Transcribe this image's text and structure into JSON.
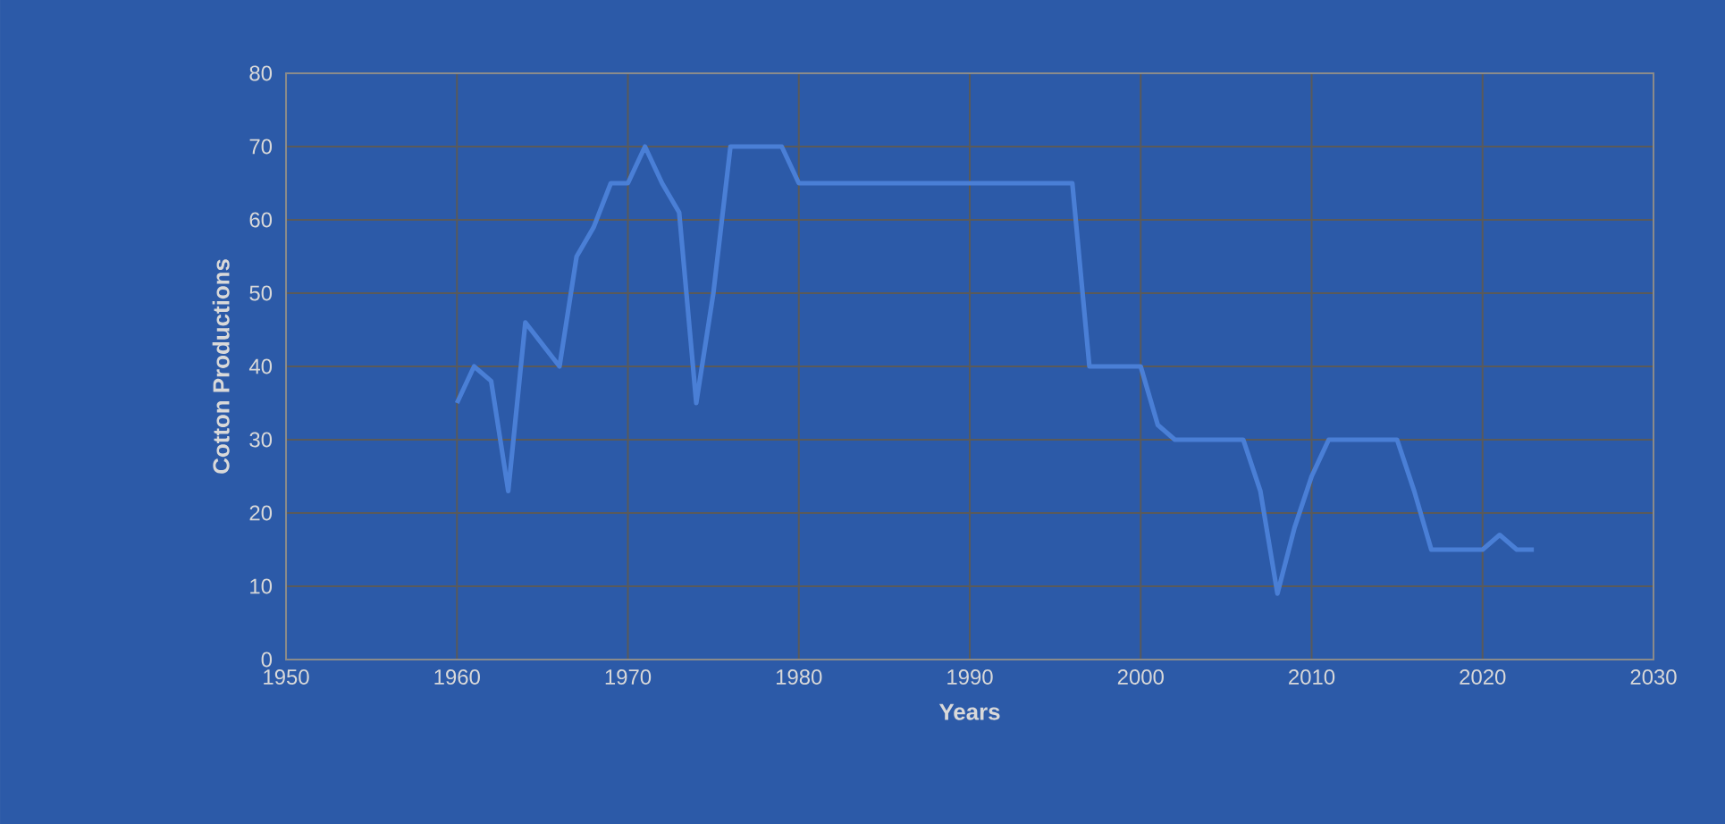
{
  "chart_data": {
    "type": "line",
    "xlabel": "Years",
    "ylabel": "Cotton Productions",
    "x": [
      1960,
      1961,
      1962,
      1963,
      1964,
      1965,
      1966,
      1967,
      1968,
      1969,
      1970,
      1971,
      1972,
      1973,
      1974,
      1975,
      1976,
      1977,
      1978,
      1979,
      1980,
      1981,
      1985,
      1990,
      1995,
      1996,
      1997,
      1998,
      1999,
      2000,
      2001,
      2002,
      2003,
      2004,
      2005,
      2006,
      2007,
      2008,
      2009,
      2010,
      2011,
      2012,
      2013,
      2014,
      2015,
      2016,
      2017,
      2018,
      2019,
      2020,
      2021,
      2022,
      2023
    ],
    "series": [
      {
        "color": "#4a7fd6",
        "values": [
          35,
          40,
          38,
          23,
          46,
          43,
          40,
          55,
          59,
          65,
          65,
          70,
          65,
          61,
          35,
          50,
          70,
          70,
          70,
          70,
          65,
          65,
          65,
          65,
          65,
          65,
          40,
          40,
          40,
          40,
          32,
          30,
          30,
          30,
          30,
          30,
          23,
          9,
          18,
          25,
          30,
          30,
          30,
          30,
          30,
          23,
          15,
          15,
          15,
          15,
          17,
          15,
          15
        ]
      }
    ],
    "xlim": [
      1950,
      2030
    ],
    "xticks": [
      1950,
      1960,
      1970,
      1980,
      1990,
      2000,
      2010,
      2020,
      2030
    ],
    "ylim": [
      0,
      80
    ],
    "yticks": [
      0,
      10,
      20,
      30,
      40,
      50,
      60,
      70,
      80
    ],
    "grid": true,
    "marker": "none",
    "line_style": "solid"
  }
}
